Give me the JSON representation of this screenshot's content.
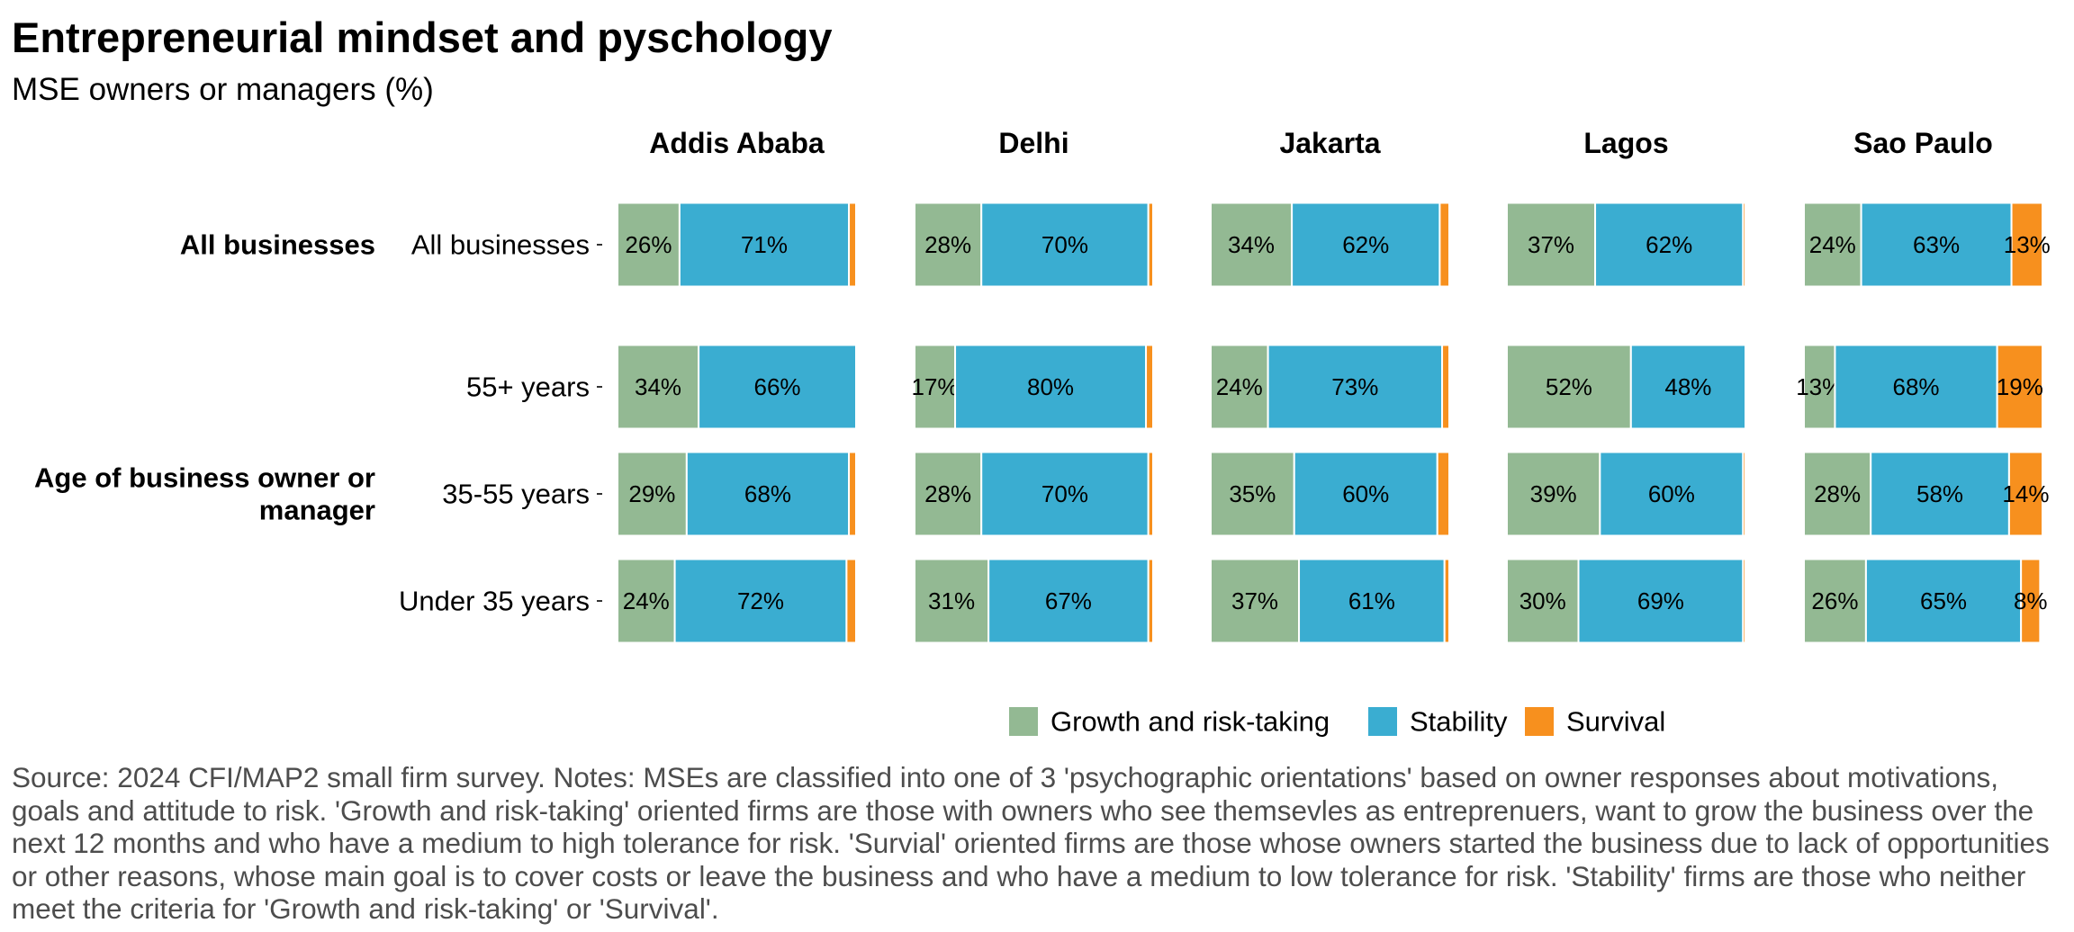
{
  "chart_data": {
    "type": "bar",
    "orientation": "horizontal",
    "stacked": true,
    "title": "Entrepreneurial mindset and pyschology",
    "subtitle": "MSE owners or managers (%)",
    "facets": [
      "Addis Ababa",
      "Delhi",
      "Jakarta",
      "Lagos",
      "Sao Paulo"
    ],
    "groups": [
      {
        "label": "All businesses",
        "rows": [
          "All businesses"
        ]
      },
      {
        "label": "Age of business owner or manager",
        "label_lines": [
          "Age of business owner or",
          "manager"
        ],
        "rows": [
          "55+ years",
          "35-55 years",
          "Under 35 years"
        ]
      }
    ],
    "series": [
      {
        "name": "Growth and risk-taking",
        "color": "#93b993"
      },
      {
        "name": "Stability",
        "color": "#3aadd1"
      },
      {
        "name": "Survival",
        "color": "#f7901e"
      }
    ],
    "values": {
      "Addis Ababa": {
        "All businesses": [
          26,
          71,
          3
        ],
        "55+ years": [
          34,
          66,
          0
        ],
        "35-55 years": [
          29,
          68,
          3
        ],
        "Under 35 years": [
          24,
          72,
          4
        ]
      },
      "Delhi": {
        "All businesses": [
          28,
          70,
          2
        ],
        "55+ years": [
          17,
          80,
          3
        ],
        "35-55 years": [
          28,
          70,
          2
        ],
        "Under 35 years": [
          31,
          67,
          2
        ]
      },
      "Jakarta": {
        "All businesses": [
          34,
          62,
          4
        ],
        "55+ years": [
          24,
          73,
          3
        ],
        "35-55 years": [
          35,
          60,
          5
        ],
        "Under 35 years": [
          37,
          61,
          2
        ]
      },
      "Lagos": {
        "All businesses": [
          37,
          62,
          1
        ],
        "55+ years": [
          52,
          48,
          0
        ],
        "35-55 years": [
          39,
          60,
          1
        ],
        "Under 35 years": [
          30,
          69,
          1
        ]
      },
      "Sao Paulo": {
        "All businesses": [
          24,
          63,
          13
        ],
        "55+ years": [
          13,
          68,
          19
        ],
        "35-55 years": [
          28,
          58,
          14
        ],
        "Under 35 years": [
          26,
          65,
          8
        ]
      }
    },
    "label_threshold": 6,
    "legend_position": "bottom",
    "grid": false,
    "xlim": [
      0,
      100
    ]
  },
  "source_note": "Source: 2024 CFI/MAP2 small firm survey. Notes: MSEs are classified into one of 3 'psychographic orientations' based on owner responses about motivations, goals and attitude to risk. 'Growth and risk-taking' oriented firms are those with owners who see themsevles as entreprenuers, want to grow the business over the next 12 months and who have a medium to high tolerance for risk. 'Survial' oriented firms are those whose owners started the business due to lack of opportunities or other reasons, whose main goal is to cover costs or leave the business and who have a medium to low tolerance for risk. 'Stability' firms are those who neither meet the criteria for 'Growth and risk-taking' or 'Survival'."
}
